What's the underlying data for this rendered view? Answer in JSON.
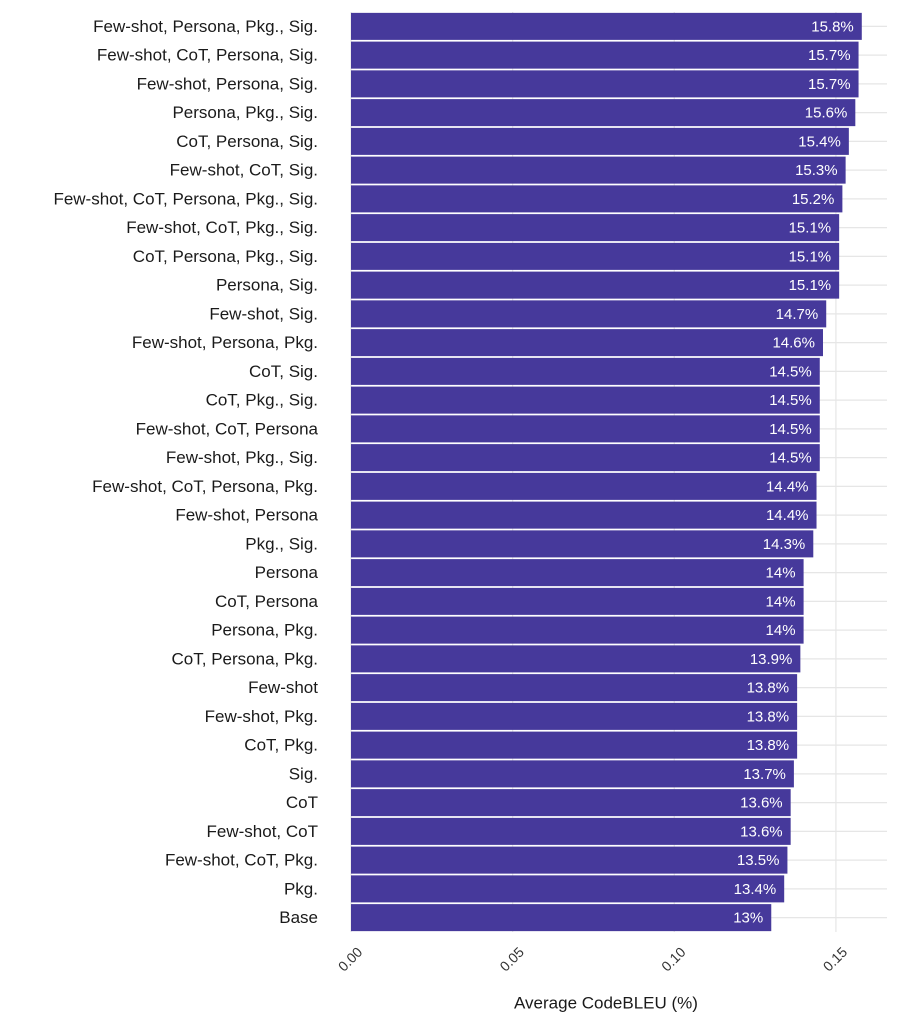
{
  "chart_data": {
    "type": "barh",
    "x_label": "Average CodeBLEU (%)",
    "categories": [
      "Few-shot, Persona, Pkg., Sig.",
      "Few-shot, CoT, Persona, Sig.",
      "Few-shot, Persona, Sig.",
      "Persona, Pkg., Sig.",
      "CoT, Persona, Sig.",
      "Few-shot, CoT, Sig.",
      "Few-shot, CoT, Persona, Pkg., Sig.",
      "Few-shot, CoT, Pkg., Sig.",
      "CoT, Persona, Pkg., Sig.",
      "Persona, Sig.",
      "Few-shot, Sig.",
      "Few-shot, Persona, Pkg.",
      "CoT, Sig.",
      "CoT, Pkg., Sig.",
      "Few-shot, CoT, Persona",
      "Few-shot, Pkg., Sig.",
      "Few-shot, CoT, Persona, Pkg.",
      "Few-shot, Persona",
      "Pkg., Sig.",
      "Persona",
      "CoT, Persona",
      "Persona, Pkg.",
      "CoT, Persona, Pkg.",
      "Few-shot",
      "Few-shot, Pkg.",
      "CoT, Pkg.",
      "Sig.",
      "CoT",
      "Few-shot, CoT",
      "Few-shot, CoT, Pkg.",
      "Pkg.",
      "Base"
    ],
    "values": [
      0.158,
      0.157,
      0.157,
      0.156,
      0.154,
      0.153,
      0.152,
      0.151,
      0.151,
      0.151,
      0.147,
      0.146,
      0.145,
      0.145,
      0.145,
      0.145,
      0.144,
      0.144,
      0.143,
      0.14,
      0.14,
      0.14,
      0.139,
      0.138,
      0.138,
      0.138,
      0.137,
      0.136,
      0.136,
      0.135,
      0.134,
      0.13
    ],
    "value_labels": [
      "15.8%",
      "15.7%",
      "15.7%",
      "15.6%",
      "15.4%",
      "15.3%",
      "15.2%",
      "15.1%",
      "15.1%",
      "15.1%",
      "14.7%",
      "14.6%",
      "14.5%",
      "14.5%",
      "14.5%",
      "14.5%",
      "14.4%",
      "14.4%",
      "14.3%",
      "14%",
      "14%",
      "14%",
      "13.9%",
      "13.8%",
      "13.8%",
      "13.8%",
      "13.7%",
      "13.6%",
      "13.6%",
      "13.5%",
      "13.4%",
      "13%"
    ],
    "color": "#46399b",
    "xlim": [
      0,
      0.1658
    ],
    "xticks": [
      {
        "value": 0,
        "label": "0.00"
      },
      {
        "value": 0.05,
        "label": "0.05"
      },
      {
        "value": 0.1,
        "label": "0.10"
      },
      {
        "value": 0.15,
        "label": "0.15"
      }
    ],
    "grid": true
  }
}
